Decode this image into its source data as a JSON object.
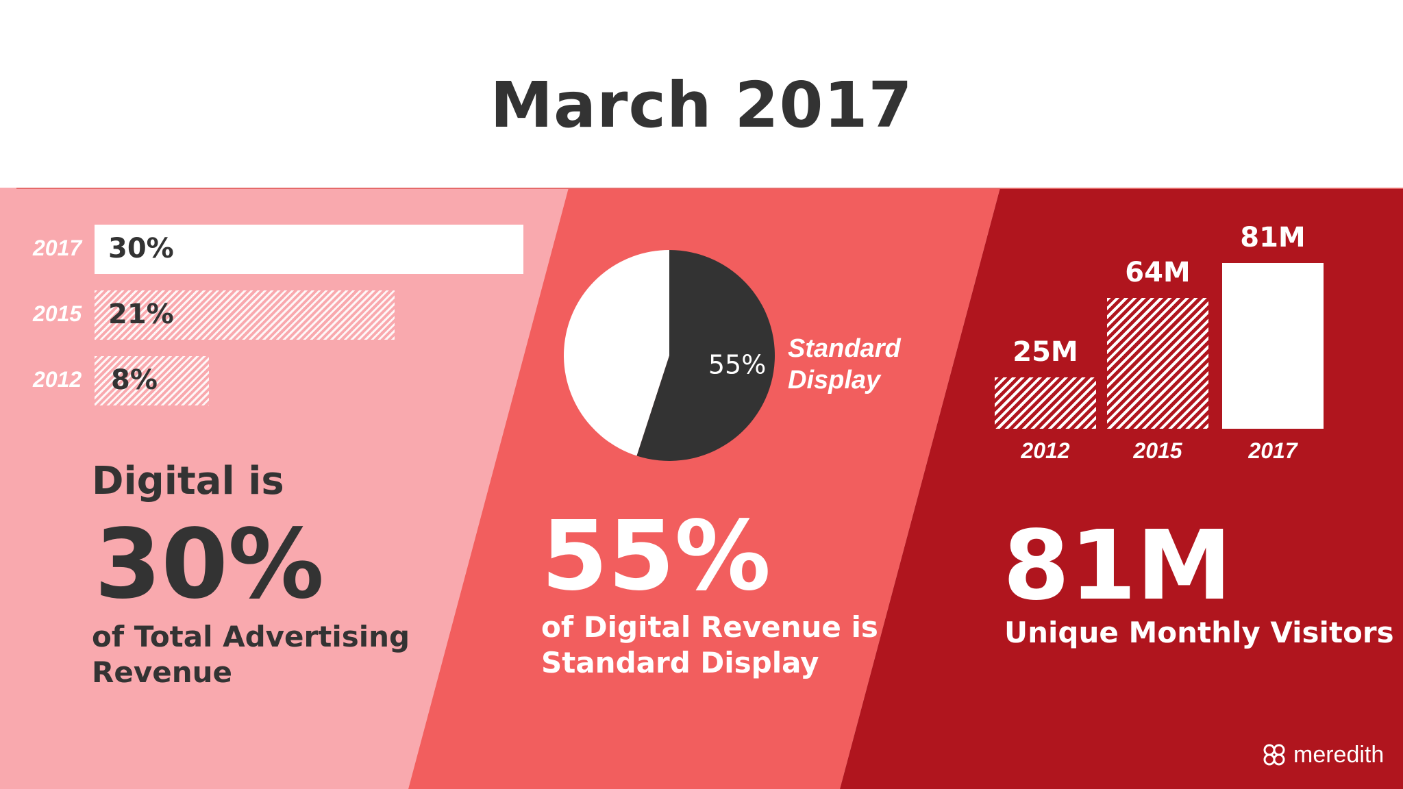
{
  "title": "March 2017",
  "colors": {
    "panel_left": "#F9A9AE",
    "panel_mid": "#F25E5E",
    "panel_right": "#B0151E",
    "dark": "#333333",
    "white": "#FFFFFF"
  },
  "left_panel": {
    "headline": "Digital is",
    "big_value": "30%",
    "caption_line1": "of Total Advertising",
    "caption_line2": "Revenue"
  },
  "mid_panel": {
    "big_value": "55%",
    "caption_line1": "of Digital Revenue is",
    "caption_line2": "Standard Display",
    "legend_line1": "Standard",
    "legend_line2": "Display"
  },
  "right_panel": {
    "big_value": "81M",
    "caption": "Unique Monthly Visitors"
  },
  "logo": {
    "text": "meredith",
    "icon": "meredith-logo-icon"
  },
  "chart_data": [
    {
      "type": "bar",
      "orientation": "horizontal",
      "categories": [
        "2017",
        "2015",
        "2012"
      ],
      "values": [
        30,
        21,
        8
      ],
      "labels": [
        "30%",
        "21%",
        "8%"
      ],
      "unit": "%"
    },
    {
      "type": "pie",
      "slices": [
        {
          "name": "Standard Display",
          "value": 55,
          "label": "55%",
          "color": "#333333"
        },
        {
          "value": 45,
          "color": "#FFFFFF"
        }
      ]
    },
    {
      "type": "bar",
      "orientation": "vertical",
      "categories": [
        "2012",
        "2015",
        "2017"
      ],
      "values": [
        25,
        64,
        81
      ],
      "labels": [
        "25M",
        "64M",
        "81M"
      ],
      "unit": "M"
    }
  ]
}
